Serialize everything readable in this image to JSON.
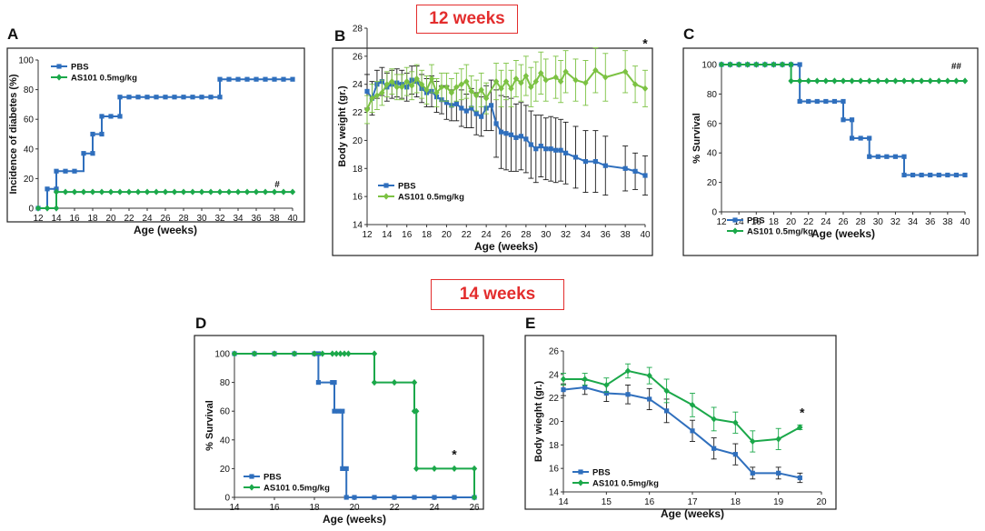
{
  "banners": {
    "top": "12 weeks",
    "bottom": "14 weeks"
  },
  "colors": {
    "pbs": "#2f6fbd",
    "as101_light": "#7cc243",
    "as101": "#1ba84a",
    "banner": "#e32d2d"
  },
  "chart_data": [
    {
      "panel": "A",
      "type": "line",
      "step": true,
      "xlabel": "Age (weeks)",
      "ylabel": "Incidence of diabetes (%)",
      "xlim": [
        12,
        40
      ],
      "ylim": [
        0,
        100
      ],
      "xticks": [
        12,
        14,
        16,
        18,
        20,
        22,
        24,
        26,
        28,
        30,
        32,
        34,
        36,
        38,
        40
      ],
      "yticks": [
        0,
        20,
        40,
        60,
        80,
        100
      ],
      "annotations": [
        {
          "text": "#",
          "x": 38.3,
          "y": 14
        }
      ],
      "legend": "top-left",
      "series": [
        {
          "name": "PBS",
          "color": "#2f6fbd",
          "marker": "square",
          "x": [
            12,
            13,
            14,
            14,
            15,
            16,
            17,
            18,
            18,
            19,
            19,
            20,
            21,
            21,
            22,
            23,
            24,
            25,
            26,
            27,
            28,
            29,
            30,
            31,
            32,
            32,
            33,
            34,
            35,
            36,
            37,
            38,
            39,
            40
          ],
          "y": [
            0,
            13,
            13,
            25,
            25,
            25,
            37,
            37,
            50,
            50,
            62,
            62,
            62,
            75,
            75,
            75,
            75,
            75,
            75,
            75,
            75,
            75,
            75,
            75,
            75,
            87,
            87,
            87,
            87,
            87,
            87,
            87,
            87,
            87
          ]
        },
        {
          "name": "AS101 0.5mg/kg",
          "color": "#1ba84a",
          "marker": "diamond",
          "x": [
            12,
            13,
            14,
            14,
            15,
            16,
            17,
            18,
            19,
            20,
            21,
            22,
            23,
            24,
            25,
            26,
            27,
            28,
            29,
            30,
            31,
            32,
            33,
            34,
            35,
            36,
            37,
            38,
            39,
            40
          ],
          "y": [
            0,
            0,
            0,
            11,
            11,
            11,
            11,
            11,
            11,
            11,
            11,
            11,
            11,
            11,
            11,
            11,
            11,
            11,
            11,
            11,
            11,
            11,
            11,
            11,
            11,
            11,
            11,
            11,
            11,
            11
          ]
        }
      ]
    },
    {
      "panel": "B",
      "type": "line",
      "xlabel": "Age (weeks)",
      "ylabel": "Body weight (gr.)",
      "xlim": [
        12,
        40
      ],
      "ylim": [
        14,
        28
      ],
      "xticks": [
        12,
        14,
        16,
        18,
        20,
        22,
        24,
        26,
        28,
        30,
        32,
        34,
        36,
        38,
        40
      ],
      "yticks": [
        14,
        16,
        18,
        20,
        22,
        24,
        26,
        28
      ],
      "annotations": [
        {
          "text": "*",
          "x": 40,
          "y": 26.6
        }
      ],
      "legend": "bottom-left",
      "series": [
        {
          "name": "PBS",
          "color": "#2f6fbd",
          "marker": "square",
          "x": [
            12,
            12.5,
            13,
            13.5,
            14,
            14.5,
            15,
            15.5,
            16,
            16.5,
            17,
            17.5,
            18,
            18.5,
            19,
            19.5,
            20,
            20.5,
            21,
            21.5,
            22,
            22.5,
            23,
            23.5,
            24,
            24.5,
            25,
            25.5,
            26,
            26.5,
            27,
            27.5,
            28,
            28.5,
            29,
            29.5,
            30,
            30.5,
            31,
            31.5,
            32,
            33,
            34,
            35,
            36,
            38,
            39,
            40
          ],
          "y": [
            23.5,
            23.0,
            24.0,
            24.2,
            23.8,
            24.0,
            24.1,
            24.0,
            23.8,
            24.3,
            24.2,
            23.7,
            23.4,
            23.5,
            23.1,
            22.9,
            22.7,
            22.5,
            22.6,
            22.3,
            22.1,
            22.3,
            21.9,
            21.7,
            22.3,
            22.5,
            21.2,
            20.6,
            20.5,
            20.4,
            20.2,
            20.3,
            20.1,
            19.7,
            19.4,
            19.6,
            19.4,
            19.4,
            19.3,
            19.3,
            19.1,
            18.8,
            18.5,
            18.5,
            18.2,
            18.0,
            17.8,
            17.5
          ],
          "err": [
            1.2,
            1.2,
            1.0,
            1.0,
            1.0,
            1.0,
            1.0,
            1.0,
            1.0,
            1.0,
            1.1,
            1.0,
            1.0,
            1.1,
            1.1,
            1.0,
            1.2,
            1.1,
            1.2,
            1.3,
            1.2,
            1.4,
            1.5,
            1.4,
            1.6,
            1.8,
            2.4,
            2.6,
            2.6,
            2.6,
            2.4,
            2.4,
            2.4,
            2.4,
            2.4,
            2.2,
            2.2,
            2.3,
            2.3,
            2.2,
            2.2,
            2.2,
            2.2,
            2.2,
            2.1,
            1.6,
            1.3,
            1.4
          ]
        },
        {
          "name": "AS101 0.5mg/kg",
          "color": "#7cc243",
          "marker": "diamond",
          "x": [
            12,
            12.5,
            13,
            13.5,
            14,
            14.5,
            15,
            15.5,
            16,
            16.5,
            17,
            17.5,
            18,
            18.5,
            19,
            19.5,
            20,
            20.5,
            21,
            21.5,
            22,
            22.5,
            23,
            23.5,
            24,
            25,
            25.5,
            26,
            26.5,
            27,
            27.5,
            28,
            28.5,
            29,
            29.5,
            30,
            31,
            31.5,
            32,
            33,
            34,
            35,
            36,
            38,
            39,
            40
          ],
          "y": [
            22.2,
            23.0,
            23.2,
            23.4,
            24.0,
            24.2,
            23.8,
            23.8,
            24.2,
            23.9,
            24.4,
            24.0,
            23.6,
            24.4,
            23.4,
            23.8,
            23.8,
            23.4,
            23.8,
            24.0,
            24.2,
            23.5,
            23.2,
            23.6,
            23.0,
            24.2,
            23.7,
            24.2,
            23.7,
            24.4,
            24.1,
            24.6,
            23.8,
            24.2,
            24.8,
            24.3,
            24.5,
            24.2,
            24.9,
            24.3,
            24.1,
            25.0,
            24.5,
            24.9,
            24.0,
            23.7
          ],
          "err": [
            1.0,
            1.0,
            1.0,
            0.9,
            0.9,
            0.9,
            0.9,
            0.9,
            1.0,
            1.0,
            1.0,
            1.0,
            1.0,
            1.0,
            1.0,
            1.0,
            1.0,
            1.0,
            1.0,
            1.1,
            1.2,
            1.1,
            1.1,
            1.2,
            1.1,
            1.3,
            1.3,
            1.3,
            1.3,
            1.3,
            1.3,
            1.4,
            1.4,
            1.4,
            1.5,
            1.5,
            1.5,
            1.5,
            1.5,
            1.5,
            1.6,
            1.6,
            1.7,
            1.5,
            1.3,
            1.3
          ]
        }
      ]
    },
    {
      "panel": "C",
      "type": "line",
      "step": true,
      "xlabel": "Age (weeks)",
      "ylabel": "% Survival",
      "xlim": [
        12,
        40
      ],
      "ylim": [
        0,
        100
      ],
      "xticks": [
        12,
        14,
        16,
        18,
        20,
        22,
        24,
        26,
        28,
        30,
        32,
        34,
        36,
        38,
        40
      ],
      "yticks": [
        0,
        20,
        40,
        60,
        80,
        100
      ],
      "annotations": [
        {
          "text": "##",
          "x": 39,
          "y": 97
        }
      ],
      "legend": "bottom-left",
      "series": [
        {
          "name": "PBS",
          "color": "#2f6fbd",
          "marker": "square",
          "x": [
            12,
            13,
            14,
            15,
            16,
            17,
            18,
            19,
            20,
            21,
            21,
            22,
            23,
            24,
            25,
            26,
            26,
            27,
            27,
            28,
            29,
            29,
            30,
            31,
            32,
            33,
            33,
            34,
            35,
            36,
            37,
            38,
            39,
            40
          ],
          "y": [
            100,
            100,
            100,
            100,
            100,
            100,
            100,
            100,
            100,
            100,
            75,
            75,
            75,
            75,
            75,
            75,
            62.5,
            62.5,
            50,
            50,
            50,
            37.5,
            37.5,
            37.5,
            37.5,
            37.5,
            25,
            25,
            25,
            25,
            25,
            25,
            25,
            25
          ]
        },
        {
          "name": "AS101 0.5mg/kg",
          "color": "#1ba84a",
          "marker": "diamond",
          "x": [
            12,
            13,
            14,
            15,
            16,
            17,
            18,
            19,
            20,
            20,
            21,
            22,
            23,
            24,
            25,
            26,
            27,
            28,
            29,
            30,
            31,
            32,
            33,
            34,
            35,
            36,
            37,
            38,
            39,
            40
          ],
          "y": [
            100,
            100,
            100,
            100,
            100,
            100,
            100,
            100,
            100,
            88.9,
            88.9,
            88.9,
            88.9,
            88.9,
            88.9,
            88.9,
            88.9,
            88.9,
            88.9,
            88.9,
            88.9,
            88.9,
            88.9,
            88.9,
            88.9,
            88.9,
            88.9,
            88.9,
            88.9,
            88.9
          ]
        }
      ]
    },
    {
      "panel": "D",
      "type": "line",
      "step": true,
      "xlabel": "Age (weeks)",
      "ylabel": "% Survival",
      "xlim": [
        14,
        26
      ],
      "ylim": [
        0,
        100
      ],
      "xticks": [
        14,
        16,
        18,
        20,
        22,
        24,
        26
      ],
      "yticks": [
        0,
        20,
        40,
        60,
        80,
        100
      ],
      "annotations": [
        {
          "text": "*",
          "x": 25,
          "y": 27
        }
      ],
      "legend": "bottom-left",
      "series": [
        {
          "name": "PBS",
          "color": "#2f6fbd",
          "marker": "square",
          "x": [
            14,
            15,
            16,
            17,
            18,
            18.2,
            18.2,
            18.9,
            19.0,
            19.0,
            19.2,
            19.4,
            19.4,
            19.6,
            19.6,
            20,
            21,
            22,
            23,
            24,
            25,
            26
          ],
          "y": [
            100,
            100,
            100,
            100,
            100,
            100,
            80,
            80,
            80,
            60,
            60,
            60,
            20,
            20,
            0,
            0,
            0,
            0,
            0,
            0,
            0,
            0
          ]
        },
        {
          "name": "AS101 0.5mg/kg",
          "color": "#1ba84a",
          "marker": "diamond",
          "x": [
            14,
            15,
            16,
            17,
            18,
            18.4,
            18.9,
            19.1,
            19.3,
            19.5,
            19.7,
            21,
            21,
            22,
            23,
            23,
            23.1,
            23.1,
            24,
            25,
            26,
            26
          ],
          "y": [
            100,
            100,
            100,
            100,
            100,
            100,
            100,
            100,
            100,
            100,
            100,
            100,
            80,
            80,
            80,
            60,
            60,
            20,
            20,
            20,
            20,
            0
          ]
        }
      ]
    },
    {
      "panel": "E",
      "type": "line",
      "xlabel": "Age (weeks)",
      "ylabel": "Body wieght (gr.)",
      "xlim": [
        14,
        20
      ],
      "ylim": [
        14,
        26
      ],
      "xticks": [
        14,
        15,
        16,
        17,
        18,
        19,
        20
      ],
      "yticks": [
        14,
        16,
        18,
        20,
        22,
        24,
        26
      ],
      "annotations": [
        {
          "text": "*",
          "x": 19.55,
          "y": 20.4
        }
      ],
      "legend": "bottom-left",
      "series": [
        {
          "name": "PBS",
          "color": "#2f6fbd",
          "marker": "square",
          "x": [
            14,
            14.5,
            15,
            15.5,
            16,
            16.4,
            17,
            17.5,
            18,
            18.4,
            19,
            19.5
          ],
          "y": [
            22.7,
            22.9,
            22.4,
            22.3,
            21.9,
            20.9,
            19.2,
            17.7,
            17.2,
            15.6,
            15.6,
            15.2
          ],
          "err": [
            0.5,
            0.6,
            0.7,
            0.8,
            0.9,
            1.0,
            0.9,
            0.9,
            0.9,
            0.5,
            0.5,
            0.4
          ]
        },
        {
          "name": "AS101 0.5mg/kg",
          "color": "#1ba84a",
          "marker": "diamond",
          "x": [
            14,
            14.5,
            15,
            15.5,
            16,
            16.4,
            17,
            17.5,
            18,
            18.4,
            19,
            19.5
          ],
          "y": [
            23.6,
            23.6,
            23.1,
            24.3,
            23.9,
            22.6,
            21.4,
            20.2,
            19.9,
            18.3,
            18.5,
            19.5
          ],
          "err": [
            0.5,
            0.5,
            0.6,
            0.6,
            0.7,
            1.0,
            1.0,
            1.0,
            0.9,
            0.9,
            0.9,
            0.2
          ]
        }
      ]
    }
  ]
}
